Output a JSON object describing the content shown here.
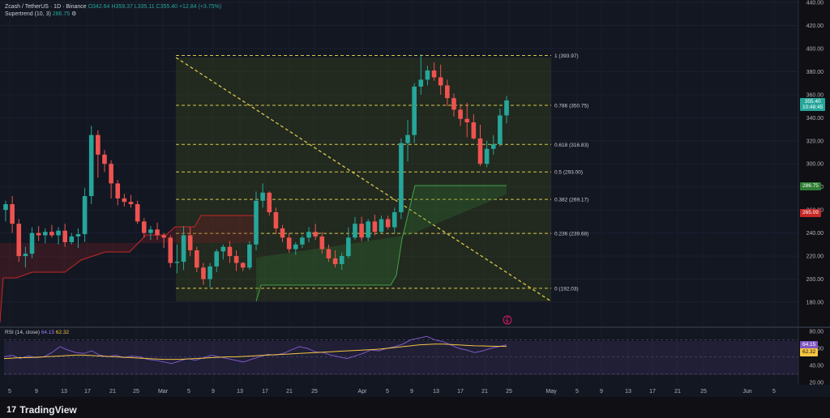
{
  "header": {
    "symbol": "Zcash / TetherUS · 1D · Binance",
    "ohlc": "O342.64 H359.37 L335.11 C355.40 +12.84 (+3.75%)",
    "indicator": "Supertrend (10, 3)",
    "indicator_value": "286.75",
    "indicator_settings": "⚙"
  },
  "price_axis": {
    "ticks": [
      "440.00",
      "420.00",
      "400.00",
      "380.00",
      "360.00",
      "340.00",
      "320.00",
      "300.00",
      "280.00",
      "260.00",
      "240.00",
      "220.00",
      "200.00",
      "180.00"
    ],
    "current_price": "355.40",
    "countdown": "10:48:45",
    "supertrend_badge": "286.75",
    "red_badge": "265.09",
    "colors": {
      "up": "#26a69a",
      "down": "#ef5350",
      "supertrend_up": "#2e7d32",
      "supertrend_down": "#7a1f22"
    }
  },
  "fib": {
    "levels": [
      {
        "ratio": "1",
        "label": "1 (393.97)",
        "price": 393.97
      },
      {
        "ratio": "0.786",
        "label": "0.786 (350.75)",
        "price": 350.75
      },
      {
        "ratio": "0.618",
        "label": "0.618 (316.83)",
        "price": 316.83
      },
      {
        "ratio": "0.5",
        "label": "0.5 (293.00)",
        "price": 293.0
      },
      {
        "ratio": "0.382",
        "label": "0.382 (269.17)",
        "price": 269.17
      },
      {
        "ratio": "0.236",
        "label": "0.236 (239.68)",
        "price": 239.68
      },
      {
        "ratio": "0",
        "label": "0 (192.03)",
        "price": 192.03
      }
    ]
  },
  "rsi": {
    "label": "RSI (14, close)",
    "value1": "64.15",
    "value2": "62.32",
    "ticks": [
      "80.00",
      "60.00",
      "40.00",
      "20.00"
    ],
    "badge1": "64.15",
    "badge2": "62.32"
  },
  "time_axis": {
    "labels": [
      "5",
      "9",
      "13",
      "17",
      "21",
      "25",
      "Mar",
      "5",
      "9",
      "13",
      "17",
      "21",
      "25",
      "Apr",
      "5",
      "9",
      "13",
      "17",
      "21",
      "25",
      "May",
      "5",
      "9",
      "13",
      "17",
      "21",
      "25",
      "Jun",
      "5"
    ]
  },
  "brand": {
    "name": "TradingView",
    "logo": "17"
  },
  "chart_data": {
    "type": "candlestick",
    "title": "Zcash / TetherUS · 1D · Binance",
    "ylim": [
      180,
      440
    ],
    "candles": [
      [
        260,
        268,
        250,
        265
      ],
      [
        265,
        272,
        240,
        248
      ],
      [
        248,
        252,
        215,
        220
      ],
      [
        220,
        228,
        210,
        222
      ],
      [
        222,
        245,
        218,
        240
      ],
      [
        240,
        246,
        233,
        238
      ],
      [
        238,
        244,
        231,
        241
      ],
      [
        241,
        247,
        236,
        238
      ],
      [
        238,
        245,
        230,
        242
      ],
      [
        242,
        248,
        228,
        232
      ],
      [
        232,
        240,
        230,
        237
      ],
      [
        237,
        244,
        227,
        239
      ],
      [
        239,
        279,
        232,
        272
      ],
      [
        272,
        333,
        265,
        325
      ],
      [
        325,
        329,
        288,
        308
      ],
      [
        308,
        312,
        293,
        300
      ],
      [
        300,
        303,
        270,
        283
      ],
      [
        283,
        286,
        264,
        270
      ],
      [
        270,
        274,
        263,
        267
      ],
      [
        267,
        273,
        262,
        265
      ],
      [
        265,
        268,
        248,
        250
      ],
      [
        250,
        253,
        236,
        240
      ],
      [
        240,
        246,
        234,
        243
      ],
      [
        243,
        249,
        234,
        238
      ],
      [
        238,
        240,
        227,
        236
      ],
      [
        236,
        238,
        210,
        214
      ],
      [
        214,
        230,
        205,
        215
      ],
      [
        215,
        246,
        208,
        238
      ],
      [
        238,
        245,
        220,
        225
      ],
      [
        225,
        228,
        206,
        210
      ],
      [
        210,
        214,
        195,
        200
      ],
      [
        200,
        214,
        193,
        211
      ],
      [
        211,
        226,
        206,
        224
      ],
      [
        224,
        230,
        217,
        228
      ],
      [
        228,
        233,
        214,
        220
      ],
      [
        220,
        225,
        207,
        214
      ],
      [
        214,
        215,
        207,
        210
      ],
      [
        210,
        233,
        208,
        230
      ],
      [
        230,
        276,
        225,
        268
      ],
      [
        268,
        283,
        262,
        275
      ],
      [
        275,
        276,
        255,
        258
      ],
      [
        258,
        262,
        239,
        244
      ],
      [
        244,
        247,
        232,
        236
      ],
      [
        236,
        240,
        223,
        226
      ],
      [
        226,
        232,
        221,
        230
      ],
      [
        230,
        238,
        227,
        236
      ],
      [
        236,
        245,
        232,
        241
      ],
      [
        241,
        248,
        234,
        237
      ],
      [
        237,
        241,
        222,
        226
      ],
      [
        226,
        230,
        215,
        218
      ],
      [
        218,
        225,
        210,
        213
      ],
      [
        213,
        223,
        208,
        220
      ],
      [
        220,
        245,
        218,
        236
      ],
      [
        236,
        254,
        234,
        248
      ],
      [
        248,
        254,
        233,
        236
      ],
      [
        236,
        252,
        233,
        250
      ],
      [
        250,
        256,
        238,
        241
      ],
      [
        241,
        255,
        240,
        252
      ],
      [
        252,
        255,
        243,
        245
      ],
      [
        245,
        262,
        240,
        258
      ],
      [
        258,
        322,
        252,
        318
      ],
      [
        318,
        338,
        302,
        325
      ],
      [
        325,
        370,
        318,
        367
      ],
      [
        367,
        395,
        360,
        373
      ],
      [
        373,
        385,
        368,
        381
      ],
      [
        381,
        388,
        372,
        375
      ],
      [
        375,
        386,
        360,
        368
      ],
      [
        368,
        373,
        350,
        357
      ],
      [
        357,
        361,
        341,
        347
      ],
      [
        347,
        352,
        333,
        339
      ],
      [
        339,
        353,
        323,
        336
      ],
      [
        336,
        343,
        321,
        322
      ],
      [
        322,
        334,
        298,
        300
      ],
      [
        300,
        320,
        297,
        313
      ],
      [
        313,
        325,
        308,
        317
      ],
      [
        317,
        348,
        315,
        342
      ],
      [
        342,
        359,
        335,
        355
      ]
    ],
    "supertrend_down": [
      [
        0,
        398
      ],
      [
        4,
        343
      ],
      [
        20,
        343
      ],
      [
        40,
        336
      ],
      [
        80,
        336
      ],
      [
        100,
        321
      ],
      [
        130,
        311
      ],
      [
        160,
        311
      ],
      [
        180,
        290
      ],
      [
        205,
        290
      ],
      [
        216,
        280
      ],
      [
        240,
        280
      ],
      [
        248,
        266
      ],
      [
        315,
        266
      ]
    ],
    "supertrend_up": [
      [
        316,
        372
      ],
      [
        322,
        352
      ],
      [
        482,
        352
      ],
      [
        489,
        340
      ],
      [
        496,
        295
      ],
      [
        505,
        258
      ],
      [
        512,
        229
      ],
      [
        625,
        229
      ]
    ],
    "rsi_values": [
      50,
      52,
      48,
      51,
      49,
      50,
      55,
      62,
      58,
      55,
      54,
      57,
      52,
      50,
      52,
      49,
      51,
      50,
      47,
      46,
      44,
      42,
      45,
      48,
      46,
      49,
      52,
      50,
      48,
      46,
      44,
      47,
      50,
      53,
      52,
      54,
      58,
      62,
      60,
      56,
      55,
      52,
      50,
      48,
      51,
      54,
      58,
      57,
      60,
      62,
      65,
      70,
      72,
      74,
      70,
      68,
      64,
      60,
      58,
      55,
      57,
      60,
      62,
      64
    ],
    "rsi_ma": [
      48,
      48.5,
      49,
      49,
      49.5,
      50,
      50.5,
      51,
      51.5,
      52,
      52,
      51.5,
      51,
      50.5,
      50,
      49.5,
      49,
      48.5,
      48,
      47.5,
      47,
      47,
      47,
      47.5,
      48,
      48.5,
      49,
      49.5,
      50,
      50,
      50.5,
      51,
      51.5,
      52,
      52.5,
      53,
      53.5,
      54,
      54.5,
      55,
      55.5,
      56,
      56.5,
      57,
      57.5,
      58,
      58.5,
      59,
      60,
      61,
      62,
      63,
      64,
      64.5,
      65,
      65,
      64.5,
      64,
      63.5,
      63,
      62.8,
      62.5,
      62.4,
      62.32
    ]
  }
}
